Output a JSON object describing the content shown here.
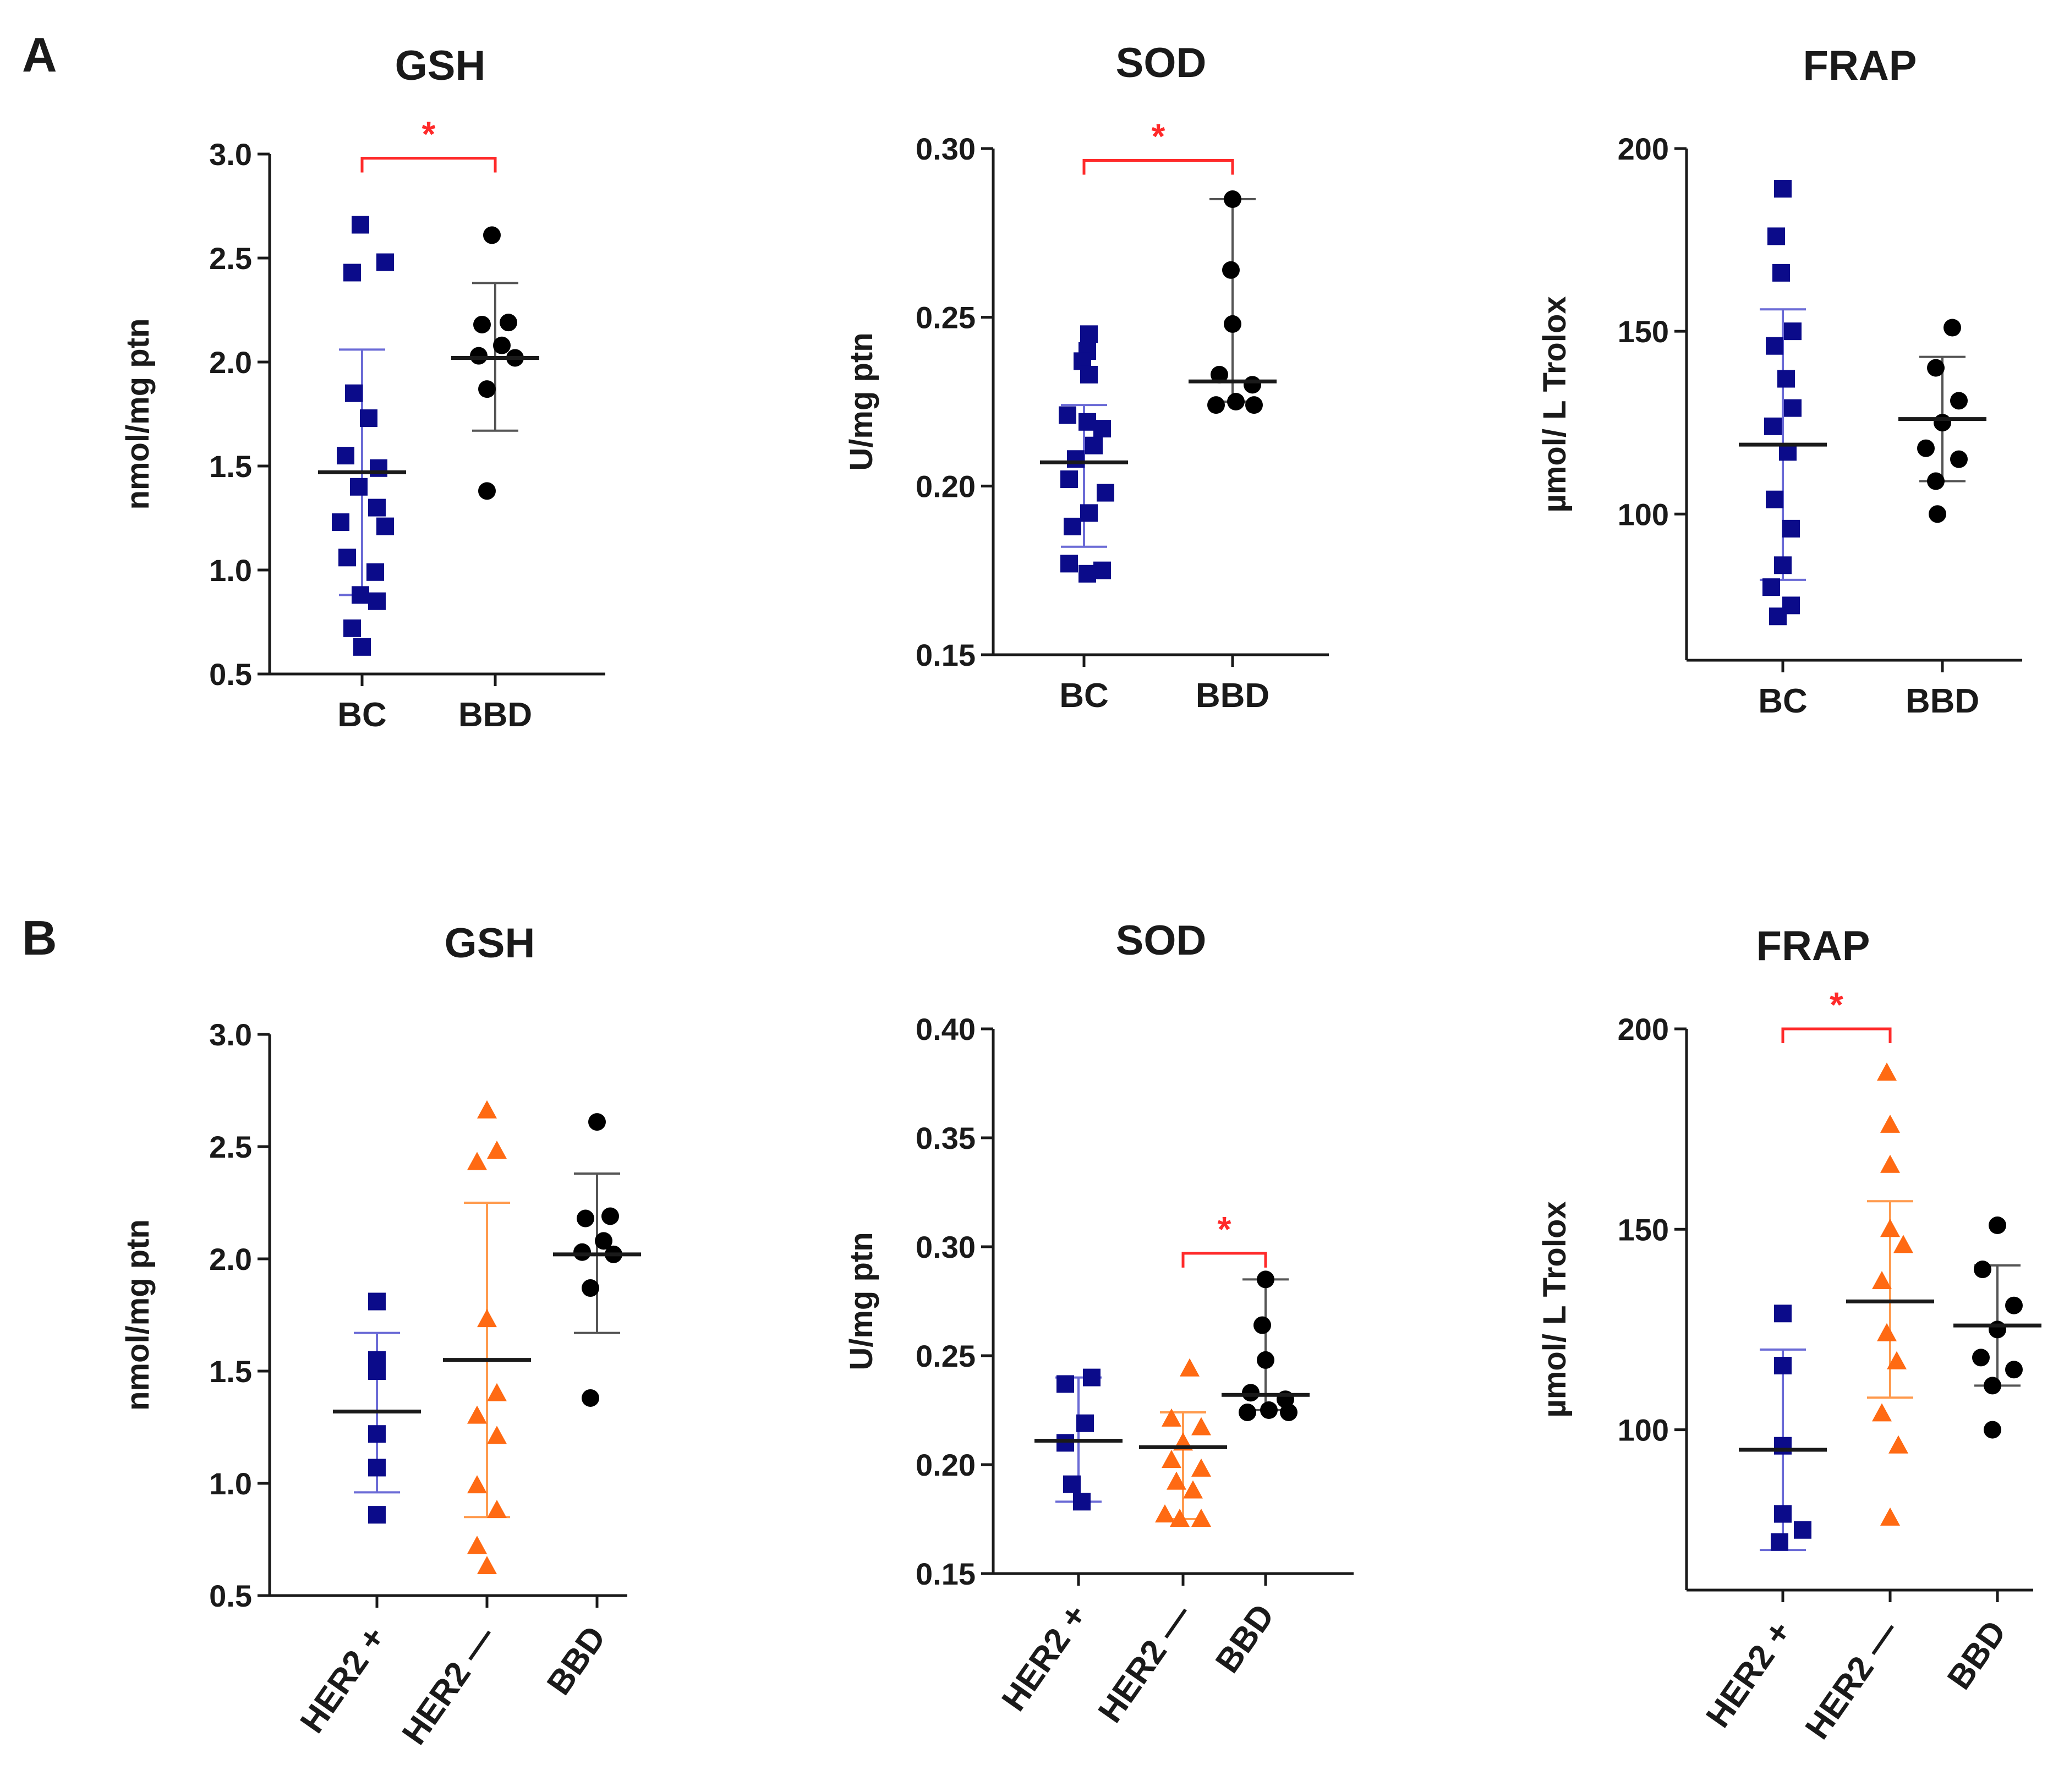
{
  "panels": [
    {
      "letter": "A"
    },
    {
      "letter": "B"
    }
  ],
  "colors": {
    "bc": "#0b0b8a",
    "her2_pos": "#0b0b8a",
    "her2_neg": "#ff6a13",
    "bbd": "#000000",
    "sd_blue": "#6b6bd6",
    "sd_orange": "#ff9a4d",
    "sd_black": "#555555",
    "sig": "#ff2a2a",
    "axis": "#1a1a1a"
  },
  "chart_data": [
    {
      "id": "A-GSH",
      "panel": "A",
      "type": "scatter",
      "title": "GSH",
      "ylabel": "nmol/mg ptn",
      "ylim": [
        0.5,
        3.0
      ],
      "yticks": [
        "0.5",
        "1.0",
        "1.5",
        "2.0",
        "2.5",
        "3.0"
      ],
      "categories": [
        "BC",
        "BBD"
      ],
      "rotated_labels": false,
      "groups": [
        {
          "name": "BC",
          "marker": "square",
          "color": "bc",
          "sd_color": "sd_blue",
          "mean": 1.47,
          "sd_low": 0.88,
          "sd_high": 2.06,
          "points": [
            2.66,
            2.48,
            2.43,
            1.85,
            1.73,
            1.55,
            1.49,
            1.4,
            1.3,
            1.23,
            1.21,
            1.06,
            0.99,
            0.88,
            0.85,
            0.72,
            0.63
          ],
          "offsets": [
            -0.01,
            0.14,
            -0.06,
            -0.05,
            0.04,
            -0.1,
            0.1,
            -0.02,
            0.09,
            -0.13,
            0.14,
            -0.09,
            0.08,
            -0.01,
            0.09,
            -0.06,
            0.0
          ]
        },
        {
          "name": "BBD",
          "marker": "circle",
          "color": "bbd",
          "sd_color": "sd_black",
          "mean": 2.02,
          "sd_low": 1.67,
          "sd_high": 2.38,
          "points": [
            2.61,
            2.18,
            2.19,
            2.08,
            2.03,
            2.02,
            1.87,
            1.38
          ],
          "offsets": [
            -0.02,
            -0.08,
            0.08,
            0.04,
            -0.1,
            0.12,
            -0.05,
            -0.05
          ]
        }
      ],
      "significance": [
        {
          "from": "BC",
          "to": "BBD",
          "label": "*",
          "y": 2.98
        }
      ]
    },
    {
      "id": "A-SOD",
      "panel": "A",
      "type": "scatter",
      "title": "SOD",
      "ylabel": "U/mg ptn",
      "ylim": [
        0.15,
        0.3
      ],
      "yticks": [
        "0.15",
        "0.20",
        "0.25",
        "0.30"
      ],
      "categories": [
        "BC",
        "BBD"
      ],
      "rotated_labels": false,
      "groups": [
        {
          "name": "BC",
          "marker": "square",
          "color": "bc",
          "sd_color": "sd_blue",
          "mean": 0.207,
          "sd_low": 0.182,
          "sd_high": 0.224,
          "points": [
            0.245,
            0.24,
            0.237,
            0.233,
            0.221,
            0.219,
            0.217,
            0.212,
            0.208,
            0.202,
            0.198,
            0.192,
            0.188,
            0.177,
            0.175,
            0.174
          ],
          "offsets": [
            0.03,
            0.02,
            -0.01,
            0.03,
            -0.1,
            0.02,
            0.11,
            0.06,
            -0.05,
            -0.09,
            0.13,
            0.03,
            -0.07,
            -0.09,
            0.11,
            0.02
          ]
        },
        {
          "name": "BBD",
          "marker": "circle",
          "color": "bbd",
          "sd_color": "sd_black",
          "mean": 0.231,
          "sd_low": 0.225,
          "sd_high": 0.285,
          "points": [
            0.285,
            0.264,
            0.248,
            0.233,
            0.23,
            0.224,
            0.225,
            0.224
          ],
          "offsets": [
            0.0,
            -0.01,
            0.0,
            -0.08,
            0.12,
            -0.1,
            0.02,
            0.13
          ]
        }
      ],
      "significance": [
        {
          "from": "BC",
          "to": "BBD",
          "label": "*",
          "y": 0.2965
        }
      ]
    },
    {
      "id": "A-FRAP",
      "panel": "A",
      "type": "scatter",
      "title": "FRAP",
      "ylabel": "µmol/ L Trolox",
      "ylim": [
        60,
        200
      ],
      "yticks": [
        "100",
        "150",
        "200"
      ],
      "categories": [
        "BC",
        "BBD"
      ],
      "rotated_labels": false,
      "groups": [
        {
          "name": "BC",
          "marker": "square",
          "color": "bc",
          "sd_color": "sd_blue",
          "mean": 119,
          "sd_low": 82,
          "sd_high": 156,
          "points": [
            189,
            176,
            166,
            150,
            146,
            137,
            129,
            124,
            117,
            104,
            96,
            86,
            80,
            75,
            72
          ],
          "offsets": [
            0.0,
            -0.04,
            -0.01,
            0.06,
            -0.05,
            0.02,
            0.06,
            -0.06,
            0.03,
            -0.05,
            0.05,
            0.0,
            -0.07,
            0.05,
            -0.03
          ]
        },
        {
          "name": "BBD",
          "marker": "circle",
          "color": "bbd",
          "sd_color": "sd_black",
          "mean": 126,
          "sd_low": 109,
          "sd_high": 143,
          "points": [
            151,
            140,
            131,
            125,
            118,
            115,
            109,
            100
          ],
          "offsets": [
            0.06,
            -0.04,
            0.1,
            0.0,
            -0.1,
            0.1,
            -0.04,
            -0.03
          ]
        }
      ],
      "significance": []
    },
    {
      "id": "B-GSH",
      "panel": "B",
      "type": "scatter",
      "title": "GSH",
      "ylabel": "nmol/mg ptn",
      "ylim": [
        0.5,
        3.0
      ],
      "yticks": [
        "0.5",
        "1.0",
        "1.5",
        "2.0",
        "2.5",
        "3.0"
      ],
      "categories": [
        "HER2 +",
        "HER2 —",
        "BBD"
      ],
      "rotated_labels": true,
      "groups": [
        {
          "name": "HER2 +",
          "marker": "square",
          "color": "her2_pos",
          "sd_color": "sd_blue",
          "mean": 1.32,
          "sd_low": 0.96,
          "sd_high": 1.67,
          "points": [
            1.81,
            1.55,
            1.5,
            1.22,
            1.07,
            0.86
          ],
          "offsets": [
            0.0,
            0.0,
            0.0,
            0.0,
            0.0,
            0.0
          ]
        },
        {
          "name": "HER2 —",
          "marker": "triangle",
          "color": "her2_neg",
          "sd_color": "sd_orange",
          "mean": 1.55,
          "sd_low": 0.85,
          "sd_high": 2.25,
          "points": [
            2.66,
            2.48,
            2.43,
            1.73,
            1.4,
            1.3,
            1.21,
            0.99,
            0.88,
            0.72,
            0.63
          ],
          "offsets": [
            0.0,
            0.06,
            -0.06,
            0.0,
            0.06,
            -0.06,
            0.06,
            -0.06,
            0.06,
            -0.06,
            0.0
          ]
        },
        {
          "name": "BBD",
          "marker": "circle",
          "color": "bbd",
          "sd_color": "sd_black",
          "mean": 2.02,
          "sd_low": 1.67,
          "sd_high": 2.38,
          "points": [
            2.61,
            2.18,
            2.19,
            2.08,
            2.03,
            2.02,
            1.87,
            1.38
          ],
          "offsets": [
            0.0,
            -0.07,
            0.08,
            0.04,
            -0.09,
            0.1,
            -0.04,
            -0.04
          ]
        }
      ],
      "significance": []
    },
    {
      "id": "B-SOD",
      "panel": "B",
      "type": "scatter",
      "title": "SOD",
      "ylabel": "U/mg ptn",
      "ylim": [
        0.15,
        0.4
      ],
      "yticks": [
        "0.15",
        "0.20",
        "0.25",
        "0.30",
        "0.35",
        "0.40"
      ],
      "categories": [
        "HER2 +",
        "HER2 —",
        "BBD"
      ],
      "rotated_labels": true,
      "groups": [
        {
          "name": "HER2 +",
          "marker": "square",
          "color": "her2_pos",
          "sd_color": "sd_blue",
          "mean": 0.211,
          "sd_low": 0.183,
          "sd_high": 0.24,
          "points": [
            0.24,
            0.237,
            0.219,
            0.21,
            0.191,
            0.183
          ],
          "offsets": [
            0.08,
            -0.08,
            0.04,
            -0.08,
            -0.04,
            0.02
          ]
        },
        {
          "name": "HER2 —",
          "marker": "triangle",
          "color": "her2_neg",
          "sd_color": "sd_orange",
          "mean": 0.208,
          "sd_low": 0.175,
          "sd_high": 0.224,
          "points": [
            0.244,
            0.221,
            0.217,
            0.21,
            0.202,
            0.198,
            0.192,
            0.188,
            0.177,
            0.175,
            0.175
          ],
          "offsets": [
            0.04,
            -0.07,
            0.11,
            0.0,
            -0.07,
            0.11,
            -0.04,
            0.06,
            -0.11,
            0.11,
            -0.02
          ]
        },
        {
          "name": "BBD",
          "marker": "circle",
          "color": "bbd",
          "sd_color": "sd_black",
          "mean": 0.232,
          "sd_low": 0.225,
          "sd_high": 0.285,
          "points": [
            0.285,
            0.264,
            0.248,
            0.233,
            0.23,
            0.224,
            0.225,
            0.224
          ],
          "offsets": [
            0.0,
            -0.02,
            0.0,
            -0.09,
            0.12,
            -0.11,
            0.02,
            0.14
          ]
        }
      ],
      "significance": [
        {
          "from": "HER2 —",
          "to": "BBD",
          "label": "*",
          "y": 0.297
        }
      ]
    },
    {
      "id": "B-FRAP",
      "panel": "B",
      "type": "scatter",
      "title": "FRAP",
      "ylabel": "µmol/ L Trolox",
      "ylim": [
        60,
        200
      ],
      "yticks": [
        "100",
        "150",
        "200"
      ],
      "categories": [
        "HER2 +",
        "HER2 —",
        "BBD"
      ],
      "rotated_labels": true,
      "groups": [
        {
          "name": "HER2 +",
          "marker": "square",
          "color": "her2_pos",
          "sd_color": "sd_blue",
          "mean": 95,
          "sd_low": 70,
          "sd_high": 120,
          "points": [
            129,
            116,
            96,
            79,
            75,
            72
          ],
          "offsets": [
            0.0,
            0.0,
            0.0,
            0.0,
            0.12,
            -0.02
          ]
        },
        {
          "name": "HER2 —",
          "marker": "triangle",
          "color": "her2_neg",
          "sd_color": "sd_orange",
          "mean": 132,
          "sd_low": 108,
          "sd_high": 157,
          "points": [
            189,
            176,
            166,
            150,
            146,
            137,
            124,
            117,
            104,
            96,
            78
          ],
          "offsets": [
            -0.02,
            0.0,
            0.0,
            0.0,
            0.08,
            -0.05,
            -0.02,
            0.04,
            -0.05,
            0.05,
            0.0
          ]
        },
        {
          "name": "BBD",
          "marker": "circle",
          "color": "bbd",
          "sd_color": "sd_black",
          "mean": 126,
          "sd_low": 111,
          "sd_high": 141,
          "points": [
            151,
            140,
            131,
            125,
            118,
            115,
            111,
            100
          ],
          "offsets": [
            0.0,
            -0.09,
            0.1,
            0.0,
            -0.1,
            0.1,
            -0.03,
            -0.03
          ]
        }
      ],
      "significance": [
        {
          "from": "HER2 +",
          "to": "HER2 —",
          "label": "*",
          "y": 200
        }
      ]
    }
  ]
}
